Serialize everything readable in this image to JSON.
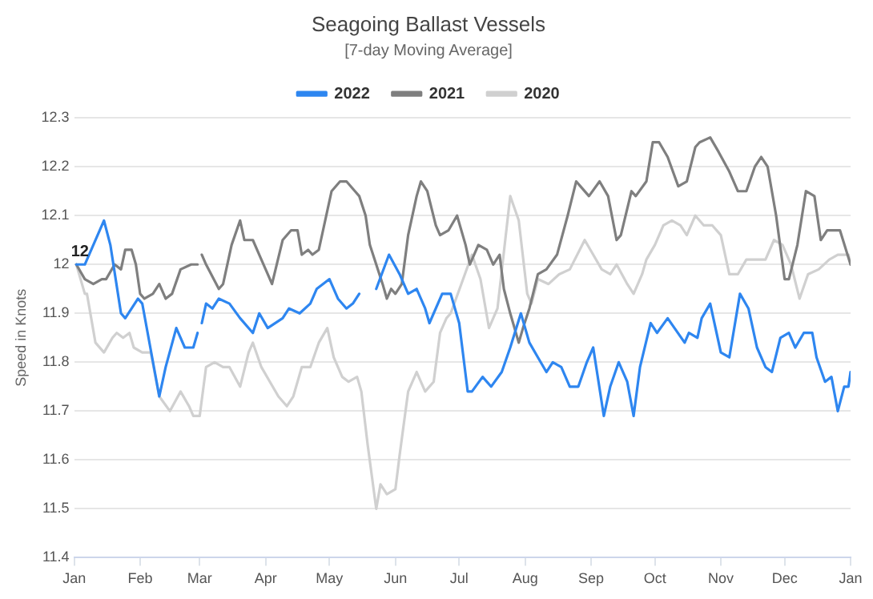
{
  "chart_data": {
    "type": "line",
    "title": "Seagoing Ballast Vessels",
    "subtitle": "[7-day Moving Average]",
    "ylabel": "Speed in Knots",
    "xlim": [
      "2022-01-01",
      "2023-01-01"
    ],
    "xticks": [
      {
        "value": "2022-01-01",
        "label": "Jan"
      },
      {
        "value": "2022-02-01",
        "label": "Feb"
      },
      {
        "value": "2022-03-01",
        "label": "Mar"
      },
      {
        "value": "2022-04-01",
        "label": "Apr"
      },
      {
        "value": "2022-05-01",
        "label": "May"
      },
      {
        "value": "2022-06-01",
        "label": "Jun"
      },
      {
        "value": "2022-07-01",
        "label": "Jul"
      },
      {
        "value": "2022-08-01",
        "label": "Aug"
      },
      {
        "value": "2022-09-01",
        "label": "Sep"
      },
      {
        "value": "2022-10-01",
        "label": "Oct"
      },
      {
        "value": "2022-11-01",
        "label": "Nov"
      },
      {
        "value": "2022-12-01",
        "label": "Dec"
      },
      {
        "value": "2023-01-01",
        "label": "Jan"
      }
    ],
    "ylim": [
      11.4,
      12.3
    ],
    "yticks": [
      11.4,
      11.5,
      11.6,
      11.7,
      11.8,
      11.9,
      12,
      12.1,
      12.2,
      12.3
    ],
    "grid": "y",
    "legend": "top",
    "marker": "none",
    "line_style": "solid",
    "annotations": [
      {
        "text": "12",
        "x": "2022-01-01",
        "y": 12
      }
    ],
    "series": [
      {
        "name": "2022",
        "color": "#2e86f0",
        "x": [
          "2022-01-02",
          "2022-01-06",
          "2022-01-15",
          "2022-01-18",
          "2022-01-23",
          "2022-01-25",
          "2022-01-28",
          "2022-01-31",
          "2022-02-02",
          "2022-02-10",
          "2022-02-13",
          "2022-02-18",
          "2022-02-22",
          "2022-02-26",
          "2022-02-28",
          "2022-03-01",
          "2022-03-02",
          "2022-03-04",
          "2022-03-07",
          "2022-03-10",
          "2022-03-15",
          "2022-03-20",
          "2022-03-26",
          "2022-03-29",
          "2022-04-02",
          "2022-04-09",
          "2022-04-12",
          "2022-04-17",
          "2022-04-22",
          "2022-04-25",
          "2022-05-01",
          "2022-05-05",
          "2022-05-09",
          "2022-05-12",
          "2022-05-15",
          "2022-05-19",
          "2022-05-23",
          "2022-05-29",
          "2022-06-03",
          "2022-06-07",
          "2022-06-11",
          "2022-06-15",
          "2022-06-17",
          "2022-06-23",
          "2022-06-27",
          "2022-07-01",
          "2022-07-05",
          "2022-07-07",
          "2022-07-12",
          "2022-07-16",
          "2022-07-21",
          "2022-07-25",
          "2022-07-30",
          "2022-08-03",
          "2022-08-07",
          "2022-08-11",
          "2022-08-14",
          "2022-08-18",
          "2022-08-22",
          "2022-08-26",
          "2022-08-30",
          "2022-09-02",
          "2022-09-07",
          "2022-09-10",
          "2022-09-14",
          "2022-09-18",
          "2022-09-21",
          "2022-09-24",
          "2022-09-29",
          "2022-10-02",
          "2022-10-07",
          "2022-10-15",
          "2022-10-17",
          "2022-10-21",
          "2022-10-23",
          "2022-10-27",
          "2022-11-01",
          "2022-11-05",
          "2022-11-10",
          "2022-11-14",
          "2022-11-18",
          "2022-11-22",
          "2022-11-25",
          "2022-11-29",
          "2022-12-03",
          "2022-12-06",
          "2022-12-10",
          "2022-12-14",
          "2022-12-16",
          "2022-12-20",
          "2022-12-23",
          "2022-12-26",
          "2022-12-29",
          "2022-12-31",
          "2023-01-01"
        ],
        "values": [
          12,
          12,
          12.09,
          12.04,
          11.9,
          11.89,
          11.91,
          11.93,
          11.92,
          11.73,
          11.79,
          11.87,
          11.83,
          11.83,
          11.86,
          null,
          11.88,
          11.92,
          11.91,
          11.93,
          11.92,
          11.89,
          11.86,
          11.9,
          11.87,
          11.89,
          11.91,
          11.9,
          11.92,
          11.95,
          11.97,
          11.93,
          11.91,
          11.92,
          11.94,
          null,
          11.95,
          12.02,
          11.98,
          11.94,
          11.95,
          11.91,
          11.88,
          11.94,
          11.94,
          11.88,
          11.74,
          11.74,
          11.77,
          11.75,
          11.78,
          11.83,
          11.9,
          11.84,
          11.81,
          11.78,
          11.8,
          11.79,
          11.75,
          11.75,
          11.8,
          11.83,
          11.69,
          11.75,
          11.8,
          11.76,
          11.69,
          11.79,
          11.88,
          11.86,
          11.89,
          11.84,
          11.86,
          11.85,
          11.89,
          11.92,
          11.82,
          11.81,
          11.94,
          11.91,
          11.83,
          11.79,
          11.78,
          11.85,
          11.86,
          11.83,
          11.86,
          11.86,
          11.81,
          11.76,
          11.77,
          11.7,
          11.75,
          11.75,
          11.78
        ]
      },
      {
        "name": "2021",
        "color": "#7f7f7f",
        "x": [
          "2022-01-02",
          "2022-01-06",
          "2022-01-10",
          "2022-01-14",
          "2022-01-16",
          "2022-01-20",
          "2022-01-23",
          "2022-01-25",
          "2022-01-28",
          "2022-01-30",
          "2022-02-01",
          "2022-02-03",
          "2022-02-07",
          "2022-02-10",
          "2022-02-13",
          "2022-02-16",
          "2022-02-20",
          "2022-02-25",
          "2022-02-28",
          "2022-03-01",
          "2022-03-02",
          "2022-03-04",
          "2022-03-10",
          "2022-03-12",
          "2022-03-16",
          "2022-03-20",
          "2022-03-22",
          "2022-03-26",
          "2022-03-29",
          "2022-04-02",
          "2022-04-04",
          "2022-04-09",
          "2022-04-13",
          "2022-04-16",
          "2022-04-18",
          "2022-04-21",
          "2022-04-23",
          "2022-04-26",
          "2022-04-27",
          "2022-05-02",
          "2022-05-06",
          "2022-05-09",
          "2022-05-13",
          "2022-05-15",
          "2022-05-18",
          "2022-05-20",
          "2022-05-23",
          "2022-05-26",
          "2022-05-28",
          "2022-05-30",
          "2022-06-01",
          "2022-06-04",
          "2022-06-07",
          "2022-06-11",
          "2022-06-13",
          "2022-06-16",
          "2022-06-20",
          "2022-06-22",
          "2022-06-26",
          "2022-06-30",
          "2022-07-04",
          "2022-07-06",
          "2022-07-10",
          "2022-07-14",
          "2022-07-17",
          "2022-07-20",
          "2022-07-22",
          "2022-07-25",
          "2022-07-29",
          "2022-07-31",
          "2022-08-03",
          "2022-08-07",
          "2022-08-11",
          "2022-08-16",
          "2022-08-21",
          "2022-08-25",
          "2022-08-27",
          "2022-08-31",
          "2022-09-05",
          "2022-09-09",
          "2022-09-13",
          "2022-09-15",
          "2022-09-20",
          "2022-09-22",
          "2022-09-27",
          "2022-09-30",
          "2022-10-03",
          "2022-10-07",
          "2022-10-12",
          "2022-10-16",
          "2022-10-20",
          "2022-10-22",
          "2022-10-27",
          "2022-10-31",
          "2022-11-05",
          "2022-11-09",
          "2022-11-13",
          "2022-11-17",
          "2022-11-20",
          "2022-11-23",
          "2022-11-27",
          "2022-12-01",
          "2022-12-03",
          "2022-12-07",
          "2022-12-11",
          "2022-12-15",
          "2022-12-18",
          "2022-12-21",
          "2022-12-27",
          "2023-01-01"
        ],
        "values": [
          12,
          11.97,
          11.96,
          11.97,
          11.97,
          12,
          11.99,
          12.03,
          12.03,
          12,
          11.94,
          11.93,
          11.94,
          11.96,
          11.93,
          11.94,
          11.99,
          12,
          12,
          null,
          12.02,
          12,
          11.95,
          11.96,
          12.04,
          12.09,
          12.05,
          12.05,
          12.02,
          11.98,
          11.96,
          12.05,
          12.07,
          12.07,
          12.02,
          12.03,
          12.02,
          12.03,
          12.05,
          12.15,
          12.17,
          12.17,
          12.15,
          12.14,
          12.1,
          12.04,
          12,
          11.96,
          11.93,
          11.95,
          11.94,
          11.96,
          12.06,
          12.14,
          12.17,
          12.15,
          12.08,
          12.06,
          12.07,
          12.1,
          12.04,
          12,
          12.04,
          12.03,
          12,
          12.02,
          11.95,
          11.9,
          11.84,
          11.87,
          11.91,
          11.98,
          11.99,
          12.02,
          12.1,
          12.17,
          12.16,
          12.14,
          12.17,
          12.14,
          12.05,
          12.06,
          12.15,
          12.14,
          12.17,
          12.25,
          12.25,
          12.22,
          12.16,
          12.17,
          12.24,
          12.25,
          12.26,
          12.23,
          12.19,
          12.15,
          12.15,
          12.2,
          12.22,
          12.2,
          12.1,
          11.97,
          11.97,
          12.04,
          12.15,
          12.14,
          12.05,
          12.07,
          12.07,
          12
        ]
      },
      {
        "name": "2020",
        "color": "#d0d0d0",
        "x": [
          "2022-01-02",
          "2022-01-06",
          "2022-01-07",
          "2022-01-11",
          "2022-01-15",
          "2022-01-19",
          "2022-01-21",
          "2022-01-24",
          "2022-01-27",
          "2022-01-29",
          "2022-02-02",
          "2022-02-06",
          "2022-02-10",
          "2022-02-15",
          "2022-02-20",
          "2022-02-24",
          "2022-02-26",
          "2022-03-01",
          "2022-03-04",
          "2022-03-08",
          "2022-03-12",
          "2022-03-15",
          "2022-03-20",
          "2022-03-24",
          "2022-03-26",
          "2022-03-30",
          "2022-04-03",
          "2022-04-07",
          "2022-04-11",
          "2022-04-14",
          "2022-04-18",
          "2022-04-22",
          "2022-04-26",
          "2022-04-30",
          "2022-05-03",
          "2022-05-07",
          "2022-05-10",
          "2022-05-14",
          "2022-05-16",
          "2022-05-19",
          "2022-05-23",
          "2022-05-25",
          "2022-05-28",
          "2022-06-01",
          "2022-06-03",
          "2022-06-07",
          "2022-06-11",
          "2022-06-15",
          "2022-06-19",
          "2022-06-22",
          "2022-06-25",
          "2022-06-27",
          "2022-07-02",
          "2022-07-07",
          "2022-07-11",
          "2022-07-15",
          "2022-07-19",
          "2022-07-25",
          "2022-07-29",
          "2022-08-02",
          "2022-08-04",
          "2022-08-07",
          "2022-08-12",
          "2022-08-17",
          "2022-08-22",
          "2022-08-29",
          "2022-09-02",
          "2022-09-06",
          "2022-09-10",
          "2022-09-13",
          "2022-09-18",
          "2022-09-21",
          "2022-09-25",
          "2022-09-27",
          "2022-10-01",
          "2022-10-05",
          "2022-10-09",
          "2022-10-13",
          "2022-10-16",
          "2022-10-20",
          "2022-10-24",
          "2022-10-28",
          "2022-11-01",
          "2022-11-05",
          "2022-11-09",
          "2022-11-13",
          "2022-11-17",
          "2022-11-22",
          "2022-11-26",
          "2022-11-30",
          "2022-12-04",
          "2022-12-08",
          "2022-12-12",
          "2022-12-17",
          "2022-12-22",
          "2022-12-26",
          "2022-12-31",
          "2023-01-01"
        ],
        "values": [
          12,
          11.94,
          11.94,
          11.84,
          11.82,
          11.85,
          11.86,
          11.85,
          11.86,
          11.83,
          11.82,
          11.82,
          11.73,
          11.7,
          11.74,
          11.71,
          11.69,
          11.69,
          11.79,
          11.8,
          11.79,
          11.79,
          11.75,
          11.82,
          11.84,
          11.79,
          11.76,
          11.73,
          11.71,
          11.73,
          11.79,
          11.79,
          11.84,
          11.87,
          11.81,
          11.77,
          11.76,
          11.77,
          11.74,
          11.63,
          11.5,
          11.55,
          11.53,
          11.54,
          11.61,
          11.74,
          11.78,
          11.74,
          11.76,
          11.86,
          11.89,
          11.9,
          11.96,
          12.02,
          11.97,
          11.87,
          11.91,
          12.14,
          12.09,
          11.94,
          11.92,
          11.97,
          11.96,
          11.98,
          11.99,
          12.05,
          12.02,
          11.99,
          11.98,
          12,
          11.96,
          11.94,
          11.98,
          12.01,
          12.04,
          12.08,
          12.09,
          12.08,
          12.06,
          12.1,
          12.08,
          12.08,
          12.06,
          11.98,
          11.98,
          12.01,
          12.01,
          12.01,
          12.05,
          12.04,
          12,
          11.93,
          11.98,
          11.99,
          12.01,
          12.02,
          12.02,
          12
        ]
      }
    ]
  }
}
